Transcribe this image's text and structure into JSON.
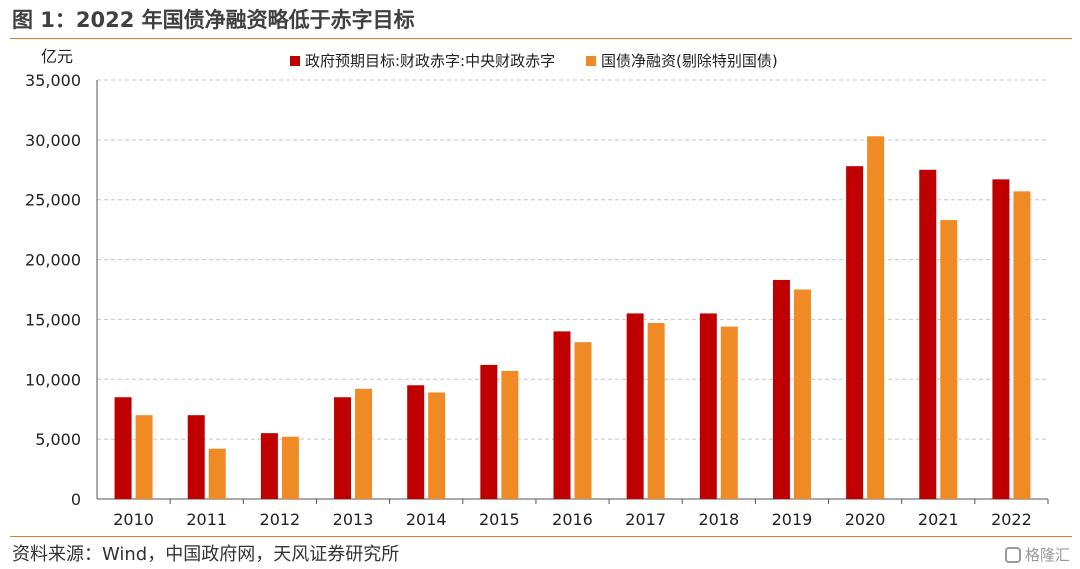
{
  "figure_title": "图 1：2022 年国债净融资略低于赤字目标",
  "source_text": "资料来源：Wind，中国政府网，天风证券研究所",
  "watermark_text": "格隆汇",
  "watermark_icon": "speech-bubble-icon",
  "colors": {
    "accent_rule": "#e07b2a",
    "series_red": "#c00000",
    "series_orange": "#f08a24",
    "grid": "#c8c8c8"
  },
  "chart_data": {
    "type": "bar",
    "ylabel": "亿元",
    "xlabel": "",
    "ylim": [
      0,
      35000
    ],
    "yticks": [
      0,
      5000,
      10000,
      15000,
      20000,
      25000,
      30000,
      35000
    ],
    "ytick_labels": [
      "0",
      "5,000",
      "10,000",
      "15,000",
      "20,000",
      "25,000",
      "30,000",
      "35,000"
    ],
    "grid": "horizontal dashed",
    "legend_position": "top-center",
    "categories": [
      "2010",
      "2011",
      "2012",
      "2013",
      "2014",
      "2015",
      "2016",
      "2017",
      "2018",
      "2019",
      "2020",
      "2021",
      "2022"
    ],
    "series": [
      {
        "name": "政府预期目标:财政赤字:中央财政赤字",
        "color": "#c00000",
        "values": [
          8500,
          7000,
          5500,
          8500,
          9500,
          11200,
          14000,
          15500,
          15500,
          18300,
          27800,
          27500,
          26700
        ]
      },
      {
        "name": "国债净融资(剔除特别国债)",
        "color": "#f08a24",
        "values": [
          7000,
          4200,
          5200,
          9200,
          8900,
          10700,
          13100,
          14700,
          14400,
          17500,
          30300,
          23300,
          25700
        ]
      }
    ]
  }
}
